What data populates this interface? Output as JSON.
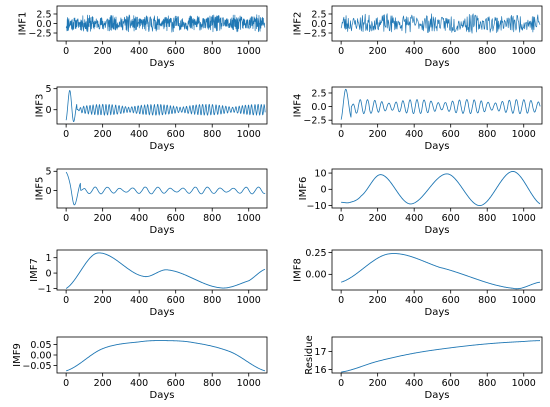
{
  "figure": {
    "type": "multi-panel line"
  },
  "chart_data": [
    {
      "type": "line",
      "ylabel": "IMF1",
      "xlabel": "Days",
      "xlim": [
        -50,
        1100
      ],
      "ylim": [
        -4.6,
        4.6
      ],
      "xticks": [
        0,
        200,
        400,
        600,
        800,
        1000
      ],
      "xtick_labels": [
        "0",
        "200",
        "400",
        "600",
        "800",
        "1000"
      ],
      "yticks": [
        -2.5,
        0.0,
        2.5
      ],
      "ytick_labels": [
        "−2.5",
        "0.0",
        "2.5"
      ],
      "color": "#1f77b4",
      "stroke_width": 0.7,
      "pattern": "noise",
      "series": [
        {
          "x": [
            0,
            1090
          ],
          "y": [
            0,
            0
          ]
        }
      ],
      "signal": {
        "form": "noise",
        "amplitude": 2.3,
        "period_days": 3,
        "seed": 11
      }
    },
    {
      "type": "line",
      "ylabel": "IMF2",
      "xlabel": "Days",
      "xlim": [
        -50,
        1100
      ],
      "ylim": [
        -4.6,
        4.6
      ],
      "xticks": [
        0,
        200,
        400,
        600,
        800,
        1000
      ],
      "xtick_labels": [
        "0",
        "200",
        "400",
        "600",
        "800",
        "1000"
      ],
      "yticks": [
        -2.5,
        0.0,
        2.5
      ],
      "ytick_labels": [
        "−2.5",
        "0.0",
        "2.5"
      ],
      "color": "#1f77b4",
      "stroke_width": 0.7,
      "series": [
        {
          "x": [
            0,
            1090
          ],
          "y": [
            0,
            0
          ]
        }
      ],
      "signal": {
        "form": "noise",
        "amplitude": 2.6,
        "period_days": 6,
        "seed": 23
      }
    },
    {
      "type": "line",
      "ylabel": "IMF3",
      "xlabel": "Days",
      "xlim": [
        -50,
        1100
      ],
      "ylim": [
        -3.4,
        5.4
      ],
      "xticks": [
        0,
        200,
        400,
        600,
        800,
        1000
      ],
      "xtick_labels": [
        "0",
        "200",
        "400",
        "600",
        "800",
        "1000"
      ],
      "yticks": [
        0,
        5
      ],
      "ytick_labels": [
        "0",
        "5"
      ],
      "color": "#1f77b4",
      "stroke_width": 0.8,
      "series": [
        {
          "x": [
            0,
            20,
            40,
            60,
            1090
          ],
          "y": [
            -2.5,
            4.6,
            -2.8,
            1.5,
            0
          ]
        }
      ],
      "signal": {
        "form": "oscillation",
        "amplitude": 1.3,
        "period_days": 18,
        "seed": 37
      }
    },
    {
      "type": "line",
      "ylabel": "IMF4",
      "xlabel": "Days",
      "xlim": [
        -50,
        1100
      ],
      "ylim": [
        -3.2,
        3.6
      ],
      "xticks": [
        0,
        200,
        400,
        600,
        800,
        1000
      ],
      "xtick_labels": [
        "0",
        "200",
        "400",
        "600",
        "800",
        "1000"
      ],
      "yticks": [
        -2.5,
        0.0,
        2.5
      ],
      "ytick_labels": [
        "−2.5",
        "0.0",
        "2.5"
      ],
      "color": "#1f77b4",
      "stroke_width": 0.8,
      "series": [
        {
          "x": [
            0,
            25,
            55,
            1090
          ],
          "y": [
            -2.4,
            3.2,
            -2.0,
            0
          ]
        }
      ],
      "signal": {
        "form": "oscillation",
        "amplitude": 1.3,
        "period_days": 40,
        "seed": 41
      }
    },
    {
      "type": "line",
      "ylabel": "IMF5",
      "xlabel": "Days",
      "xlim": [
        -50,
        1100
      ],
      "ylim": [
        -4.6,
        5.6
      ],
      "xticks": [
        0,
        200,
        400,
        600,
        800,
        1000
      ],
      "xtick_labels": [
        "0",
        "200",
        "400",
        "600",
        "800",
        "1000"
      ],
      "yticks": [
        0,
        5
      ],
      "ytick_labels": [
        "0",
        "5"
      ],
      "color": "#1f77b4",
      "stroke_width": 0.8,
      "series": [
        {
          "x": [
            0,
            20,
            45,
            80,
            1090
          ],
          "y": [
            4.8,
            2.0,
            -3.8,
            2.0,
            0
          ]
        }
      ],
      "signal": {
        "form": "oscillation",
        "amplitude": 0.9,
        "period_days": 70,
        "seed": 53
      }
    },
    {
      "type": "line",
      "ylabel": "IMF6",
      "xlabel": "Days",
      "xlim": [
        -50,
        1100
      ],
      "ylim": [
        -11.5,
        12.5
      ],
      "xticks": [
        0,
        200,
        400,
        600,
        800,
        1000
      ],
      "xtick_labels": [
        "0",
        "200",
        "400",
        "600",
        "800",
        "1000"
      ],
      "yticks": [
        -10,
        0,
        10
      ],
      "ytick_labels": [
        "−10",
        "0",
        "10"
      ],
      "color": "#1f77b4",
      "stroke_width": 0.9,
      "series": [
        {
          "x": [
            0,
            50,
            110,
            220,
            380,
            580,
            760,
            940,
            1090
          ],
          "y": [
            -8,
            -8,
            -4,
            9,
            -9,
            9.5,
            -10,
            11,
            -9
          ]
        }
      ]
    },
    {
      "type": "line",
      "ylabel": "IMF7",
      "xlabel": "Days",
      "xlim": [
        -50,
        1100
      ],
      "ylim": [
        -1.1,
        1.5
      ],
      "xticks": [
        0,
        200,
        400,
        600,
        800,
        1000
      ],
      "xtick_labels": [
        "0",
        "200",
        "400",
        "600",
        "800",
        "1000"
      ],
      "yticks": [
        -1,
        0,
        1
      ],
      "ytick_labels": [
        "−1",
        "0",
        "1"
      ],
      "color": "#1f77b4",
      "stroke_width": 0.9,
      "series": [
        {
          "x": [
            0,
            170,
            420,
            560,
            840,
            1000,
            1090
          ],
          "y": [
            -1.0,
            1.3,
            -0.2,
            0.2,
            -0.95,
            -0.5,
            0.25
          ]
        }
      ]
    },
    {
      "type": "line",
      "ylabel": "IMF8",
      "xlabel": "Days",
      "xlim": [
        -50,
        1100
      ],
      "ylim": [
        -0.18,
        0.28
      ],
      "xticks": [
        0,
        200,
        400,
        600,
        800,
        1000
      ],
      "xtick_labels": [
        "0",
        "200",
        "400",
        "600",
        "800",
        "1000"
      ],
      "yticks": [
        0.0,
        0.25
      ],
      "ytick_labels": [
        "0.00",
        "0.25"
      ],
      "color": "#1f77b4",
      "stroke_width": 0.9,
      "series": [
        {
          "x": [
            0,
            260,
            540,
            940,
            1090
          ],
          "y": [
            -0.09,
            0.235,
            0.08,
            -0.16,
            -0.09
          ]
        }
      ]
    },
    {
      "type": "line",
      "ylabel": "IMF9",
      "xlabel": "Days",
      "xlim": [
        -50,
        1100
      ],
      "ylim": [
        -0.085,
        0.085
      ],
      "xticks": [
        0,
        200,
        400,
        600,
        800,
        1000
      ],
      "xtick_labels": [
        "0",
        "200",
        "400",
        "600",
        "800",
        "1000"
      ],
      "yticks": [
        -0.05,
        0.0,
        0.05
      ],
      "ytick_labels": [
        "−0.05",
        "0.00",
        "0.05"
      ],
      "color": "#1f77b4",
      "stroke_width": 0.9,
      "series": [
        {
          "x": [
            0,
            200,
            400,
            545,
            700,
            900,
            1090
          ],
          "y": [
            -0.075,
            0.03,
            0.062,
            0.068,
            0.058,
            0.015,
            -0.075
          ]
        }
      ]
    },
    {
      "type": "line",
      "ylabel": "Residue",
      "xlabel": "Days",
      "xlim": [
        -50,
        1100
      ],
      "ylim": [
        15.8,
        17.8
      ],
      "xticks": [
        0,
        200,
        400,
        600,
        800,
        1000
      ],
      "xtick_labels": [
        "0",
        "200",
        "400",
        "600",
        "800",
        "1000"
      ],
      "yticks": [
        16,
        17
      ],
      "ytick_labels": [
        "16",
        "17"
      ],
      "color": "#1f77b4",
      "stroke_width": 0.9,
      "series": [
        {
          "x": [
            0,
            200,
            400,
            600,
            800,
            1000,
            1090
          ],
          "y": [
            15.85,
            16.45,
            16.9,
            17.2,
            17.42,
            17.55,
            17.6
          ]
        }
      ]
    }
  ]
}
